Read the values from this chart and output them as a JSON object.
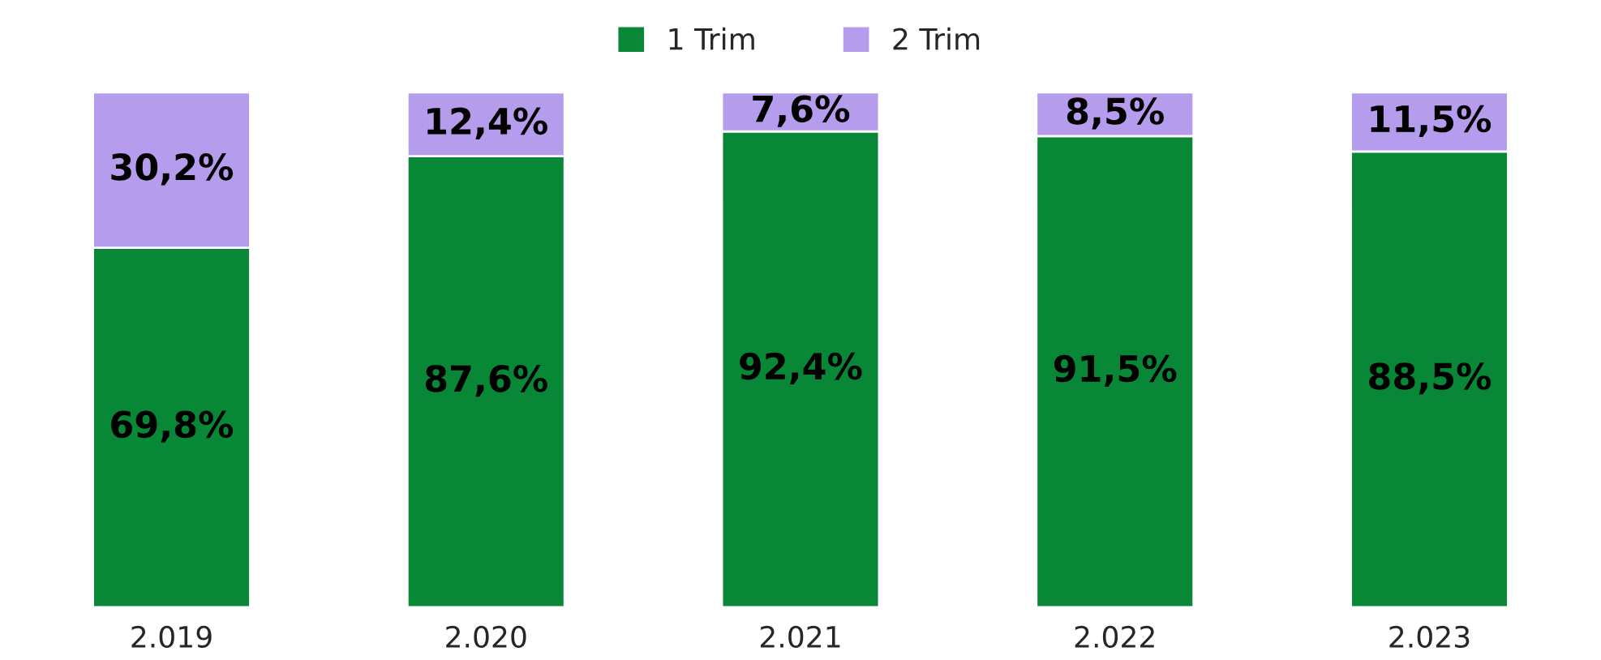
{
  "chart_data": {
    "type": "bar",
    "stacked": true,
    "categories": [
      "2.019",
      "2.020",
      "2.021",
      "2.022",
      "2.023"
    ],
    "series": [
      {
        "name": "1 Trim",
        "color": "#088737",
        "values": [
          69.8,
          87.6,
          92.4,
          91.5,
          88.5
        ],
        "value_labels": [
          "69,8%",
          "87,6%",
          "92,4%",
          "91,5%",
          "88,5%"
        ]
      },
      {
        "name": "2 Trim",
        "color": "#b59ced",
        "values": [
          30.2,
          12.4,
          7.6,
          8.5,
          11.5
        ],
        "value_labels": [
          "30,2%",
          "12,4%",
          "7,6%",
          "8,5%",
          "11,5%"
        ]
      }
    ],
    "legend": "top"
  }
}
